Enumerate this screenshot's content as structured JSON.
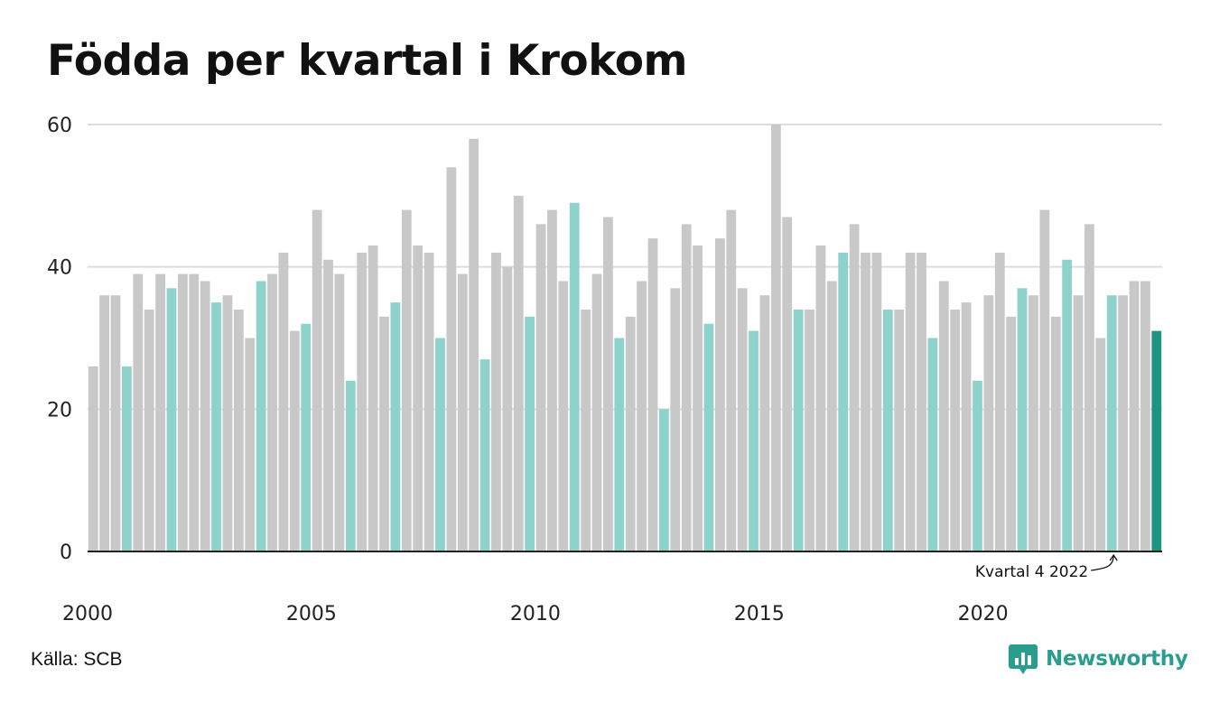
{
  "title": "Födda per kvartal i Krokom",
  "source": "Källa: SCB",
  "brand": {
    "name": "Newsworthy",
    "icon": "newsworthy-logo-icon"
  },
  "colors": {
    "default_bar": "#c8c8c8",
    "q4_bar": "#8dd3cc",
    "latest_bar": "#1e9384",
    "grid": "#dddddd",
    "axis": "#222222",
    "brand": "#2a9d8f"
  },
  "chart_data": {
    "type": "bar",
    "title": "Födda per kvartal i Krokom",
    "xlabel": "",
    "ylabel": "",
    "ylim": [
      0,
      60
    ],
    "yticks": [
      0,
      20,
      40,
      60
    ],
    "xtick_labels": [
      "2000",
      "2005",
      "2010",
      "2015",
      "2020"
    ],
    "grid": true,
    "start_period": "2000 Q1",
    "end_period": "2023 Q4",
    "highlight_rule": "Quarter 4 bars in light teal; latest bar in dark teal",
    "annotation": {
      "text": "Kvartal 4 2022",
      "target": "2022 Q4"
    },
    "values": [
      26,
      36,
      36,
      26,
      39,
      34,
      39,
      37,
      39,
      39,
      38,
      35,
      36,
      34,
      30,
      38,
      39,
      42,
      31,
      32,
      48,
      41,
      39,
      24,
      42,
      43,
      33,
      35,
      48,
      43,
      42,
      30,
      54,
      39,
      58,
      27,
      42,
      40,
      50,
      33,
      46,
      48,
      38,
      49,
      34,
      39,
      47,
      30,
      33,
      38,
      44,
      20,
      37,
      46,
      43,
      32,
      44,
      48,
      37,
      31,
      36,
      60,
      47,
      34,
      34,
      43,
      38,
      42,
      46,
      42,
      42,
      34,
      34,
      42,
      42,
      30,
      38,
      34,
      35,
      24,
      36,
      42,
      33,
      37,
      36,
      48,
      33,
      41,
      36,
      46,
      30,
      36,
      36,
      38,
      38,
      31
    ]
  }
}
